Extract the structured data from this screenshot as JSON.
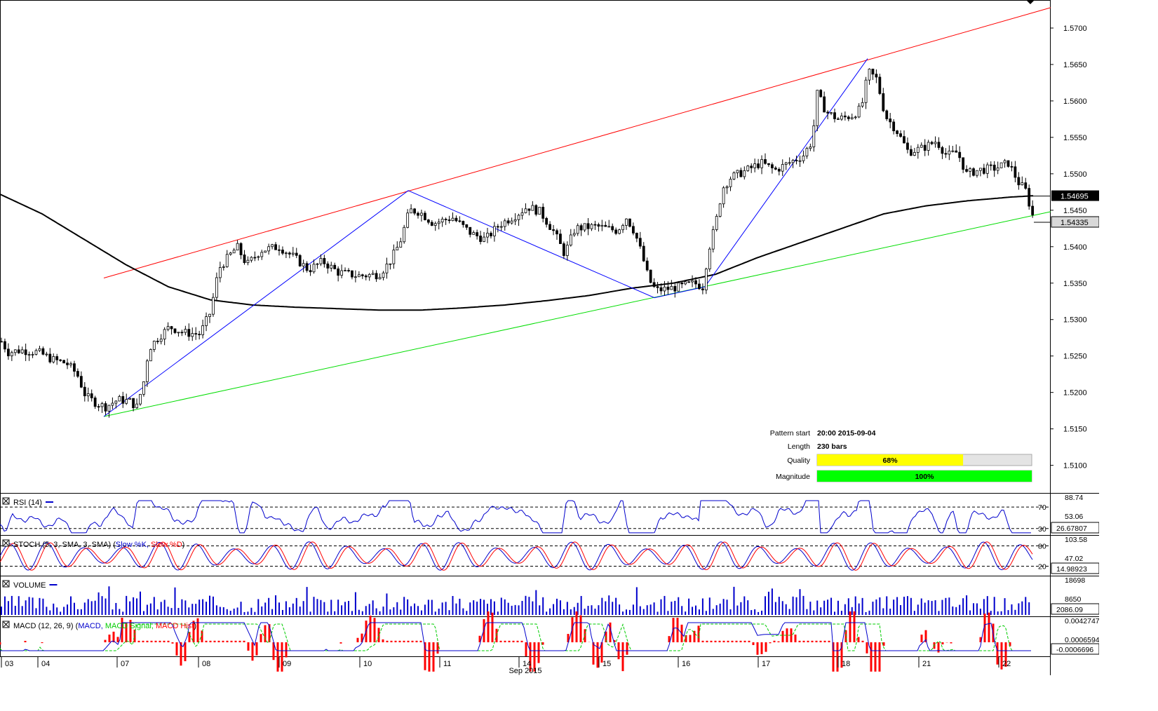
{
  "chart_data": {
    "type": "candlestick",
    "symbol_price_axis": [
      "1.5700",
      "1.5650",
      "1.5600",
      "1.5550",
      "1.5500",
      "1.5450",
      "1.5400",
      "1.5350",
      "1.5300",
      "1.5250",
      "1.5200",
      "1.5150",
      "1.5100"
    ],
    "ylim": [
      1.5065,
      1.5725
    ],
    "price_labels": {
      "current_top": "1.54695",
      "current_bottom": "1.54335"
    },
    "x_ticks": [
      {
        "label": "03",
        "x": 5
      },
      {
        "label": "04",
        "x": 57
      },
      {
        "label": "07",
        "x": 170
      },
      {
        "label": "08",
        "x": 286
      },
      {
        "label": "09",
        "x": 401
      },
      {
        "label": "10",
        "x": 516
      },
      {
        "label": "11",
        "x": 630
      },
      {
        "label": "14",
        "x": 743
      },
      {
        "label": "15",
        "x": 857
      },
      {
        "label": "16",
        "x": 970
      },
      {
        "label": "17",
        "x": 1084
      },
      {
        "label": "18",
        "x": 1198
      },
      {
        "label": "21",
        "x": 1313
      },
      {
        "label": "22",
        "x": 1427
      }
    ],
    "x_axis_title": "Sep 2015",
    "pattern_lines": {
      "resistance_red": [
        [
          148,
          1.5357
        ],
        [
          1498,
          1.5728
        ]
      ],
      "support_green": [
        [
          148,
          1.5167
        ],
        [
          1498,
          1.5448
        ]
      ],
      "zigzag_blue": [
        [
          148,
          1.5167
        ],
        [
          582,
          1.5477
        ],
        [
          933,
          1.533
        ],
        [
          1005,
          1.5345
        ],
        [
          1237,
          1.5658
        ]
      ]
    },
    "moving_average_keys": [
      [
        0,
        1.5472
      ],
      [
        60,
        1.5445
      ],
      [
        120,
        1.541
      ],
      [
        180,
        1.5375
      ],
      [
        240,
        1.5345
      ],
      [
        300,
        1.5327
      ],
      [
        360,
        1.532
      ],
      [
        420,
        1.5317
      ],
      [
        480,
        1.5315
      ],
      [
        540,
        1.5313
      ],
      [
        600,
        1.5313
      ],
      [
        660,
        1.5316
      ],
      [
        720,
        1.532
      ],
      [
        780,
        1.5326
      ],
      [
        840,
        1.5333
      ],
      [
        900,
        1.5343
      ],
      [
        960,
        1.535
      ],
      [
        1020,
        1.5362
      ],
      [
        1080,
        1.5385
      ],
      [
        1140,
        1.5405
      ],
      [
        1200,
        1.5425
      ],
      [
        1260,
        1.5445
      ],
      [
        1320,
        1.5456
      ],
      [
        1380,
        1.5463
      ],
      [
        1440,
        1.5468
      ],
      [
        1475,
        1.547
      ]
    ],
    "price_keys": [
      [
        2,
        1.527
      ],
      [
        12,
        1.5255
      ],
      [
        30,
        1.5258
      ],
      [
        55,
        1.5255
      ],
      [
        75,
        1.5245
      ],
      [
        95,
        1.524
      ],
      [
        110,
        1.5225
      ],
      [
        122,
        1.5195
      ],
      [
        138,
        1.5185
      ],
      [
        150,
        1.518
      ],
      [
        168,
        1.519
      ],
      [
        185,
        1.5188
      ],
      [
        195,
        1.518
      ],
      [
        205,
        1.5215
      ],
      [
        212,
        1.526
      ],
      [
        225,
        1.5275
      ],
      [
        242,
        1.529
      ],
      [
        262,
        1.5282
      ],
      [
        285,
        1.528
      ],
      [
        300,
        1.531
      ],
      [
        312,
        1.537
      ],
      [
        325,
        1.5385
      ],
      [
        338,
        1.54
      ],
      [
        352,
        1.5375
      ],
      [
        372,
        1.5395
      ],
      [
        398,
        1.54
      ],
      [
        420,
        1.5385
      ],
      [
        440,
        1.5368
      ],
      [
        460,
        1.538
      ],
      [
        482,
        1.5365
      ],
      [
        510,
        1.536
      ],
      [
        540,
        1.5362
      ],
      [
        555,
        1.5378
      ],
      [
        570,
        1.5405
      ],
      [
        584,
        1.545
      ],
      [
        598,
        1.5448
      ],
      [
        618,
        1.5432
      ],
      [
        645,
        1.544
      ],
      [
        672,
        1.5418
      ],
      [
        692,
        1.541
      ],
      [
        712,
        1.543
      ],
      [
        738,
        1.5445
      ],
      [
        752,
        1.5455
      ],
      [
        770,
        1.5448
      ],
      [
        790,
        1.542
      ],
      [
        805,
        1.539
      ],
      [
        820,
        1.5425
      ],
      [
        850,
        1.5428
      ],
      [
        880,
        1.5422
      ],
      [
        893,
        1.544
      ],
      [
        905,
        1.542
      ],
      [
        915,
        1.539
      ],
      [
        925,
        1.5355
      ],
      [
        935,
        1.534
      ],
      [
        950,
        1.5342
      ],
      [
        970,
        1.5345
      ],
      [
        990,
        1.535
      ],
      [
        1002,
        1.5345
      ],
      [
        1010,
        1.5395
      ],
      [
        1020,
        1.543
      ],
      [
        1030,
        1.548
      ],
      [
        1042,
        1.5495
      ],
      [
        1065,
        1.5505
      ],
      [
        1085,
        1.5515
      ],
      [
        1105,
        1.5505
      ],
      [
        1125,
        1.5515
      ],
      [
        1145,
        1.5525
      ],
      [
        1158,
        1.5545
      ],
      [
        1165,
        1.561
      ],
      [
        1178,
        1.5585
      ],
      [
        1195,
        1.5575
      ],
      [
        1215,
        1.558
      ],
      [
        1228,
        1.559
      ],
      [
        1238,
        1.564
      ],
      [
        1250,
        1.563
      ],
      [
        1262,
        1.558
      ],
      [
        1278,
        1.556
      ],
      [
        1295,
        1.553
      ],
      [
        1315,
        1.5535
      ],
      [
        1335,
        1.5545
      ],
      [
        1350,
        1.5525
      ],
      [
        1365,
        1.553
      ],
      [
        1378,
        1.55
      ],
      [
        1395,
        1.5505
      ],
      [
        1420,
        1.5508
      ],
      [
        1438,
        1.5515
      ],
      [
        1452,
        1.5488
      ],
      [
        1462,
        1.5478
      ],
      [
        1470,
        1.545
      ],
      [
        1475,
        1.5434
      ]
    ],
    "info_panel": {
      "rows": [
        {
          "label": "Pattern start",
          "value": "20:00 2015-09-04"
        },
        {
          "label": "Length",
          "value": "230 bars"
        },
        {
          "label": "Quality",
          "value": "68%",
          "fill": 0.68,
          "color": "#ffff00"
        },
        {
          "label": "Magnitude",
          "value": "100%",
          "fill": 1.0,
          "color": "#00ff00"
        }
      ]
    },
    "indicators": [
      {
        "name": "RSI",
        "title": "RSI (14)",
        "series": [
          {
            "name": "RSI (14)",
            "color": "#0000cc"
          }
        ],
        "levels": [
          {
            "label": "70",
            "value": 70
          },
          {
            "label": "30",
            "value": 30
          }
        ],
        "axis": [
          "88.74",
          "53.06"
        ],
        "current": "26.67807",
        "ylim": [
          18,
          95
        ]
      },
      {
        "name": "STOCH",
        "title": "STOCH (5, 3, SMA, 3, SMA)",
        "series": [
          {
            "name": "Slow %K",
            "color": "#0000cc"
          },
          {
            "name": "Slow %D",
            "color": "#ff0000"
          }
        ],
        "levels": [
          {
            "label": "80",
            "value": 80
          },
          {
            "label": "20",
            "value": 20
          }
        ],
        "axis": [
          "103.58",
          "47.02"
        ],
        "current": "14.98923",
        "ylim": [
          -8,
          110
        ]
      },
      {
        "name": "VOLUME",
        "title": "VOLUME",
        "series": [
          {
            "name": "VOLUME",
            "color": "#0000cc"
          }
        ],
        "axis": [
          "18698",
          "8650"
        ],
        "current": "2086.09"
      },
      {
        "name": "MACD",
        "title": "MACD (12, 26, 9)",
        "series": [
          {
            "name": "MACD",
            "color": "#0000cc"
          },
          {
            "name": "MACD Signal",
            "color": "#00cc00"
          },
          {
            "name": "MACD Hist",
            "color": "#ff0000"
          }
        ],
        "axis": [
          "0.0042747",
          "0.0006594"
        ],
        "current": "-0.0006696"
      }
    ]
  }
}
